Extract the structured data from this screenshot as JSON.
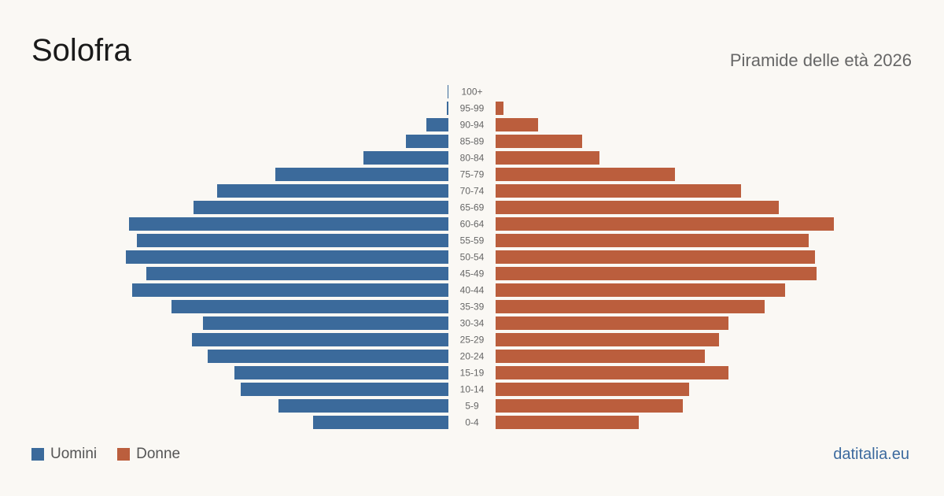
{
  "header": {
    "title": "Solofra",
    "subtitle": "Piramide delle età 2026"
  },
  "legend": {
    "items": [
      {
        "label": "Uomini",
        "color": "#3b6a9b"
      },
      {
        "label": "Donne",
        "color": "#bb5e3d"
      }
    ]
  },
  "footer": {
    "brand": "datitalia.eu"
  },
  "chart_data": {
    "type": "bar",
    "orientation": "horizontal-pyramid",
    "categories": [
      "100+",
      "95-99",
      "90-94",
      "85-89",
      "80-84",
      "75-79",
      "70-74",
      "65-69",
      "60-64",
      "55-59",
      "50-54",
      "45-49",
      "40-44",
      "35-39",
      "30-34",
      "25-29",
      "20-24",
      "15-19",
      "10-14",
      "5-9",
      "0-4"
    ],
    "series": [
      {
        "name": "Uomini",
        "color": "#3b6a9b",
        "values": [
          0.5,
          1,
          14,
          27,
          54,
          110,
          147,
          162,
          203,
          198,
          205,
          192,
          201,
          176,
          156,
          163,
          153,
          136,
          132,
          108,
          86
        ]
      },
      {
        "name": "Donne",
        "color": "#bb5e3d",
        "values": [
          0,
          5,
          27,
          55,
          66,
          114,
          156,
          180,
          215,
          199,
          203,
          204,
          184,
          171,
          148,
          142,
          133,
          148,
          123,
          119,
          91
        ]
      }
    ],
    "grid": false,
    "legend_position": "bottom-left"
  }
}
